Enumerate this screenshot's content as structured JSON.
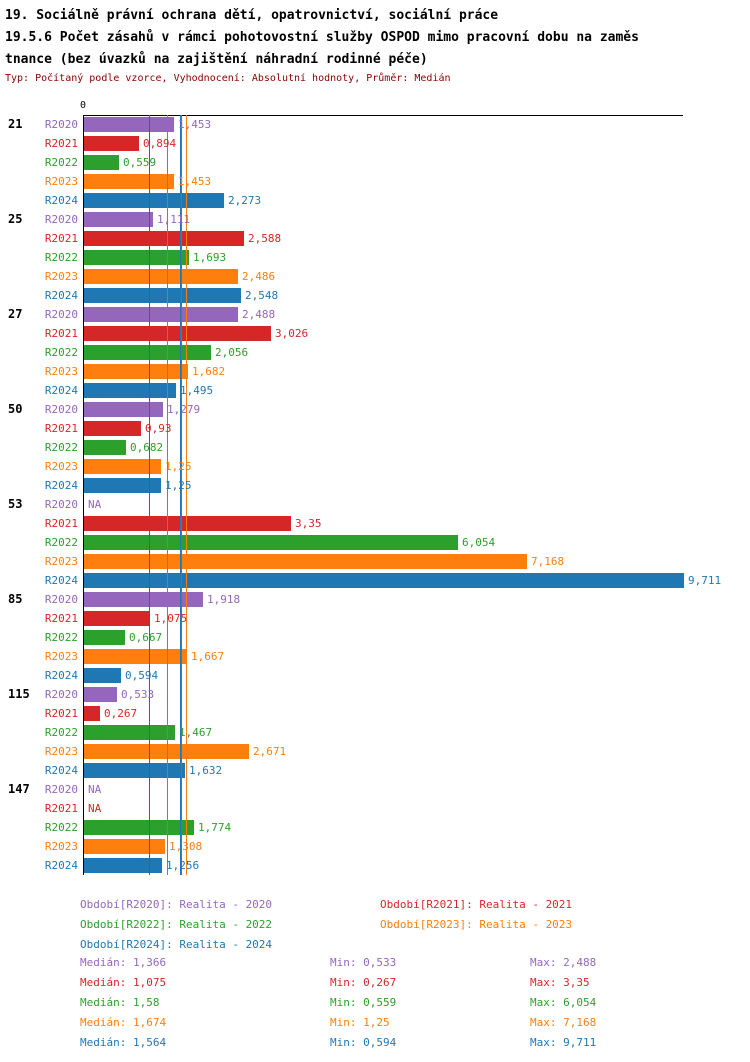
{
  "header": {
    "title_line1": "19. Sociálně právní ochrana dětí, opatrovnictví, sociální práce",
    "title_line2": "19.5.6 Počet zásahů v rámci pohotovostní služby OSPOD mimo pracovní dobu na zaměs",
    "title_line3": "tnance (bez úvazků na zajištění náhradní rodinné péče)",
    "subtitle": "Typ: Počítaný podle vzorce, Vyhodnocení: Absolutní hodnoty, Průměr: Medián",
    "subtitle_color": "#8b0000"
  },
  "chart_data": {
    "type": "bar",
    "orientation": "horizontal",
    "axis_zero_label": "0",
    "xlim": [
      0,
      9.711
    ],
    "grid": false,
    "series_labels": [
      "R2020",
      "R2021",
      "R2022",
      "R2023",
      "R2024"
    ],
    "series_colors": [
      "#9467bd",
      "#d62728",
      "#2ca02c",
      "#ff7f0e",
      "#1f77b4"
    ],
    "median_lines": [
      1.366,
      1.075,
      1.58,
      1.674,
      1.564
    ],
    "groups": [
      {
        "label": "21",
        "values": [
          1.453,
          0.894,
          0.559,
          1.453,
          2.273
        ],
        "display": [
          "1,453",
          "0,894",
          "0,559",
          "1,453",
          "2,273"
        ]
      },
      {
        "label": "25",
        "values": [
          1.111,
          2.588,
          1.693,
          2.486,
          2.548
        ],
        "display": [
          "1,111",
          "2,588",
          "1,693",
          "2,486",
          "2,548"
        ]
      },
      {
        "label": "27",
        "values": [
          2.488,
          3.026,
          2.056,
          1.682,
          1.495
        ],
        "display": [
          "2,488",
          "3,026",
          "2,056",
          "1,682",
          "1,495"
        ]
      },
      {
        "label": "50",
        "values": [
          1.279,
          0.93,
          0.682,
          1.25,
          1.25
        ],
        "display": [
          "1,279",
          "0,93",
          "0,682",
          "1,25",
          "1,25"
        ]
      },
      {
        "label": "53",
        "values": [
          null,
          3.35,
          6.054,
          7.168,
          9.711
        ],
        "display": [
          "NA",
          "3,35",
          "6,054",
          "7,168",
          "9,711"
        ]
      },
      {
        "label": "85",
        "values": [
          1.918,
          1.075,
          0.667,
          1.667,
          0.594
        ],
        "display": [
          "1,918",
          "1,075",
          "0,667",
          "1,667",
          "0,594"
        ]
      },
      {
        "label": "115",
        "values": [
          0.533,
          0.267,
          1.467,
          2.671,
          1.632
        ],
        "display": [
          "0,533",
          "0,267",
          "1,467",
          "2,671",
          "1,632"
        ]
      },
      {
        "label": "147",
        "values": [
          null,
          null,
          1.774,
          1.308,
          1.256
        ],
        "display": [
          "NA",
          "NA",
          "1,774",
          "1,308",
          "1,256"
        ]
      }
    ]
  },
  "legend": [
    {
      "label": "Období[R2020]: Realita - 2020",
      "color": "#9467bd"
    },
    {
      "label": "Období[R2021]: Realita - 2021",
      "color": "#d62728"
    },
    {
      "label": "Období[R2022]: Realita - 2022",
      "color": "#2ca02c"
    },
    {
      "label": "Období[R2023]: Realita - 2023",
      "color": "#ff7f0e"
    },
    {
      "label": "Období[R2024]: Realita - 2024",
      "color": "#1f77b4"
    }
  ],
  "stats": [
    {
      "median": "Medián: 1,366",
      "min": "Min: 0,533",
      "max": "Max: 2,488",
      "color": "#9467bd"
    },
    {
      "median": "Medián: 1,075",
      "min": "Min: 0,267",
      "max": "Max: 3,35",
      "color": "#d62728"
    },
    {
      "median": "Medián: 1,58",
      "min": "Min: 0,559",
      "max": "Max: 6,054",
      "color": "#2ca02c"
    },
    {
      "median": "Medián: 1,674",
      "min": "Min: 1,25",
      "max": "Max: 7,168",
      "color": "#ff7f0e"
    },
    {
      "median": "Medián: 1,564",
      "min": "Min: 0,594",
      "max": "Max: 9,711",
      "color": "#1f77b4"
    }
  ]
}
